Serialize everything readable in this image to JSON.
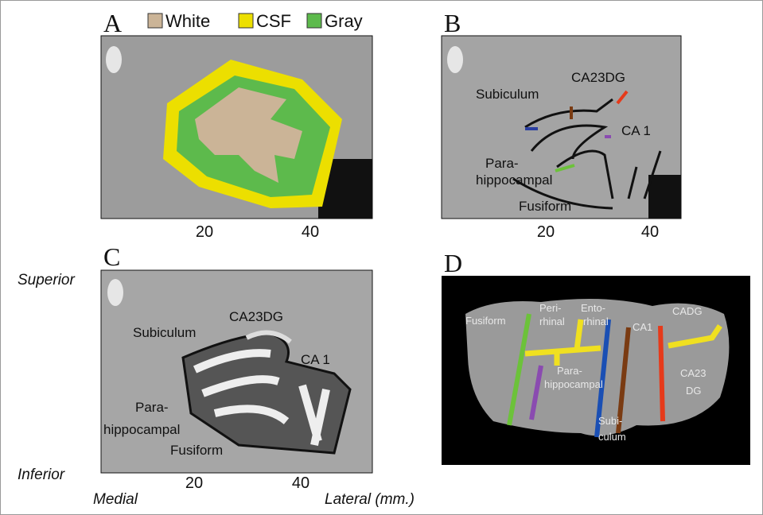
{
  "figure": {
    "panel_a": {
      "label": "A",
      "legend": [
        {
          "name": "White",
          "color": "#cbb497"
        },
        {
          "name": "CSF",
          "color": "#ecdf00"
        },
        {
          "name": "Gray",
          "color": "#5dba4c"
        }
      ],
      "xticks": [
        20,
        40
      ]
    },
    "panel_b": {
      "label": "B",
      "subiculum": "Subiculum",
      "ca23dg": "CA23DG",
      "ca1": "CA 1",
      "parahippocampal": [
        "Para-",
        "hippocampal"
      ],
      "fusiform": "Fusiform",
      "xticks": [
        20,
        40
      ]
    },
    "panel_c": {
      "label": "C",
      "subiculum": "Subiculum",
      "ca23dg": "CA23DG",
      "ca1": "CA 1",
      "parahippocampal": [
        "Para-",
        "hippocampal"
      ],
      "fusiform": "Fusiform",
      "xticks": [
        20,
        40
      ]
    },
    "panel_d": {
      "label": "D",
      "fusiform": "Fusiform",
      "perirhinal": [
        "Peri-",
        "rhinal"
      ],
      "entorhinal": [
        "Ento-",
        "rhinal"
      ],
      "ca1": "CA1",
      "cadg": "CADG",
      "ca23dg": [
        "CA23",
        "DG"
      ],
      "parahippocampal": [
        "Para-",
        "hippocampal"
      ],
      "subiculum": [
        "Subi-",
        "culum"
      ]
    },
    "axes": {
      "superior": "Superior",
      "inferior": "Inferior",
      "medial": "Medial",
      "lateral": "Lateral (mm.)"
    }
  }
}
